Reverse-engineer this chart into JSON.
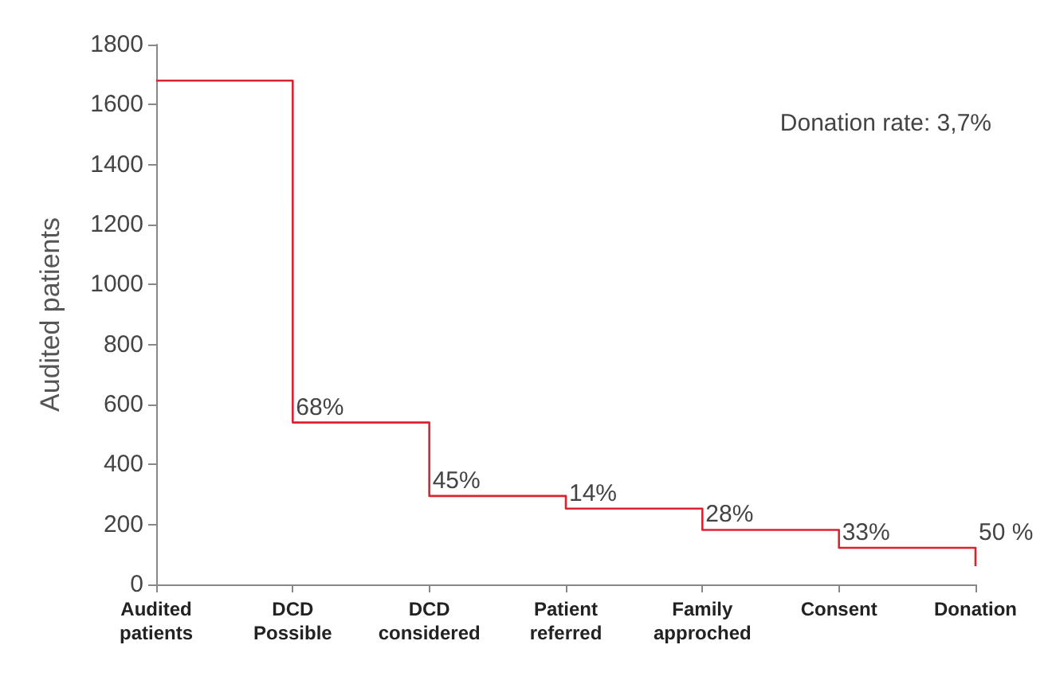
{
  "chart_data": {
    "type": "step",
    "categories": [
      "Audited\npatients",
      "DCD\nPossible",
      "DCD\nconsidered",
      "Patient\nreferred",
      "Family\napproched",
      "Consent",
      "Donation"
    ],
    "values": [
      1680,
      540,
      295,
      253,
      182,
      122,
      61
    ],
    "color": "#d9232e",
    "ylabel": "Audited patients",
    "ylim": [
      0,
      1800
    ],
    "yticks": [
      0,
      200,
      400,
      600,
      800,
      1000,
      1200,
      1400,
      1600,
      1800
    ],
    "grid": false,
    "marker": "none",
    "line_style": "solid",
    "annotations": [
      "Donation rate: 3,7%",
      {
        "text": "68%",
        "x": "DCD\nPossible",
        "y": 540
      },
      {
        "text": "45%",
        "x": "DCD\nconsidered",
        "y": 295
      },
      {
        "text": "14%",
        "x": "Patient\nreferred",
        "y": 253
      },
      {
        "text": "28%",
        "x": "Family\napproched",
        "y": 182
      },
      {
        "text": "33%",
        "x": "Consent",
        "y": 122
      },
      {
        "text": "50 %",
        "x": "Donation",
        "y": 122
      }
    ]
  }
}
